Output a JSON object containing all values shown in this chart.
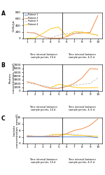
{
  "panel_A": {
    "ylabel": "Cells/μL",
    "ylim": [
      0,
      800
    ],
    "yticks": [
      0,
      200,
      400,
      600,
      800
    ],
    "patient1": {
      "x": [
        1,
        2,
        3,
        4,
        5,
        6,
        7,
        8,
        9,
        10
      ],
      "y": [
        10,
        10,
        10,
        10,
        10,
        10,
        10,
        10,
        10,
        10
      ],
      "color": "#4472C4",
      "style": "-"
    },
    "patient2": {
      "x": [
        1,
        2,
        3,
        4,
        5,
        6,
        7,
        8,
        9,
        10
      ],
      "y": [
        180,
        170,
        50,
        10,
        10,
        50,
        150,
        170,
        180,
        700
      ],
      "color": "#ED7D31",
      "style": "-"
    },
    "patient3": {
      "x": [
        1,
        2,
        3,
        4,
        5,
        6,
        7,
        8,
        9,
        10
      ],
      "y": [
        200,
        150,
        50,
        20,
        100,
        150,
        160,
        200,
        150,
        80
      ],
      "color": "#BFBFBF",
      "style": "--"
    },
    "patient4": {
      "x": [
        1,
        2,
        3,
        4,
        5,
        6,
        7,
        8,
        9,
        10
      ],
      "y": [
        10,
        10,
        150,
        300,
        350,
        80,
        210,
        190,
        150,
        100
      ],
      "color": "#FFC000",
      "style": "-"
    }
  },
  "panel_B": {
    "ylabel": "Protein\nconcentration, mg/L",
    "ylim": [
      0,
      7000
    ],
    "yticks": [
      0,
      1000,
      2000,
      3000,
      4000,
      5000,
      6000,
      7000
    ],
    "patient1": {
      "x": [
        1,
        2,
        3,
        4,
        5,
        6,
        7,
        8,
        9,
        10
      ],
      "y": [
        200,
        200,
        200,
        200,
        200,
        200,
        200,
        200,
        200,
        200
      ],
      "color": "#4472C4",
      "style": "-"
    },
    "patient2": {
      "x": [
        1,
        2,
        3,
        4,
        5,
        6,
        7,
        8,
        9,
        10
      ],
      "y": [
        2500,
        2000,
        1200,
        700,
        700,
        1200,
        2000,
        3500,
        6000,
        5800
      ],
      "color": "#ED7D31",
      "style": "-"
    },
    "patient3": {
      "x": [
        1,
        2,
        3,
        4,
        5,
        6,
        7,
        8,
        9,
        10
      ],
      "y": [
        2200,
        1800,
        1500,
        1000,
        900,
        1200,
        1500,
        1800,
        2000,
        3500
      ],
      "color": "#BFBFBF",
      "style": "--"
    },
    "patient4": {
      "x": [
        4,
        5,
        6,
        7,
        8,
        9,
        10
      ],
      "y": [
        900,
        1800,
        1400,
        1000,
        800,
        900,
        900
      ],
      "color": "#FFC000",
      "style": "-"
    }
  },
  "panel_C": {
    "ylabel": "Lactate\nconcentration, mmol/L",
    "ylim": [
      0,
      16
    ],
    "yticks": [
      0,
      4,
      8,
      12,
      16
    ],
    "patient1": {
      "x": [
        1,
        2,
        3,
        4,
        5,
        6,
        7,
        8,
        9,
        10
      ],
      "y": [
        4,
        4,
        4,
        4,
        4,
        4,
        4,
        4,
        4,
        3.5
      ],
      "color": "#4472C4",
      "style": "-"
    },
    "patient2": {
      "x": [
        1,
        2,
        3,
        4,
        5,
        6,
        7,
        8,
        9,
        10
      ],
      "y": [
        4.5,
        4.5,
        4.5,
        4.5,
        4.5,
        6,
        8,
        9,
        11,
        15
      ],
      "color": "#ED7D31",
      "style": "-"
    },
    "patient3": {
      "x": [
        1,
        2,
        3,
        4,
        5,
        6,
        7,
        8,
        9,
        10
      ],
      "y": [
        5,
        4.5,
        4.5,
        5,
        5.5,
        6,
        5.5,
        5,
        5,
        4
      ],
      "color": "#BFBFBF",
      "style": "--"
    },
    "patient4": {
      "x": [
        4,
        5,
        6,
        7,
        8,
        9,
        10
      ],
      "y": [
        5.5,
        5.5,
        5.5,
        5,
        5,
        4.5,
        4.5
      ],
      "color": "#FFC000",
      "style": "-"
    }
  },
  "xlabel_left": "Time interval between\nsample points, 14 d",
  "xlabel_right": "Time interval between\nsample points, 4–6 d",
  "patients": [
    "Patient 1",
    "Patient 2",
    "Patient 3",
    "Patient 4"
  ],
  "colors": [
    "#4472C4",
    "#ED7D31",
    "#BFBFBF",
    "#FFC000"
  ],
  "styles": [
    "-",
    "-",
    "--",
    "-"
  ],
  "divider_x": 5.5,
  "xticks": [
    1,
    2,
    3,
    4,
    5,
    6,
    7,
    8,
    9,
    10
  ]
}
